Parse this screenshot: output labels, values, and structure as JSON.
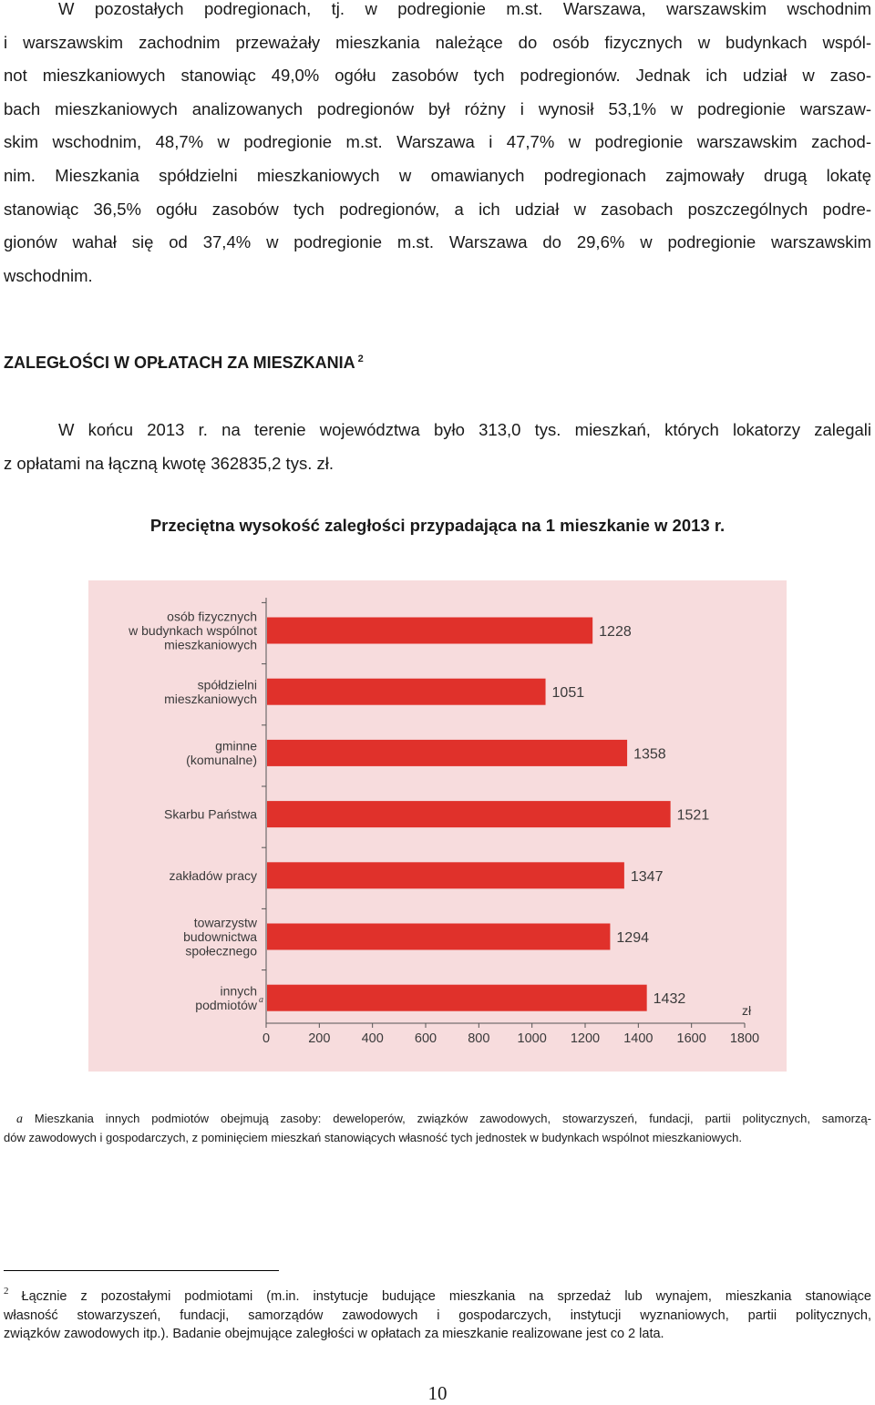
{
  "paragraph_1": {
    "lines": [
      "W pozostałych podregionach, tj. w podregionie m.st. Warszawa, warszawskim wschodnim",
      "i warszawskim zachodnim przeważały mieszkania należące do osób fizycznych w budynkach wspól-",
      "not mieszkaniowych stanowiąc 49,0% ogółu zasobów tych podregionów. Jednak ich udział w zaso-",
      "bach mieszkaniowych analizowanych podregionów był różny i wynosił 53,1% w podregionie warszaw-",
      "skim wschodnim, 48,7% w podregionie m.st. Warszawa i 47,7% w podregionie warszawskim zachod-",
      "nim. Mieszkania spółdzielni mieszkaniowych w omawianych podregionach zajmowały drugą lokatę",
      "stanowiąc 36,5% ogółu zasobów tych podregionów, a ich udział w zasobach poszczególnych podre-",
      "gionów wahał się od 37,4% w podregionie m.st. Warszawa do 29,6% w podregionie warszawskim",
      "wschodnim."
    ]
  },
  "section_heading": {
    "text": "ZALEGŁOŚCI W OPŁATACH ZA MIESZKANIA",
    "footnote_ref": "2"
  },
  "paragraph_2": {
    "lines": [
      "W końcu 2013 r. na terenie województwa było 313,0 tys. mieszkań, których lokatorzy zalegali",
      "z opłatami na łączną kwotę 362835,2 tys. zł."
    ]
  },
  "chart_title": "Przeciętna wysokość zaległości przypadająca na 1 mieszkanie w 2013 r.",
  "chart_data": {
    "type": "bar",
    "orientation": "horizontal",
    "categories": [
      [
        "osób fizycznych",
        "w budynkach wspólnot",
        "mieszkaniowych"
      ],
      [
        "spółdzielni",
        "mieszkaniowych"
      ],
      [
        "gminne",
        "(komunalne)"
      ],
      [
        "Skarbu Państwa"
      ],
      [
        "zakładów pracy"
      ],
      [
        "towarzystw",
        "budownictwa",
        "społecznego"
      ],
      [
        "innych",
        "podmiotów"
      ]
    ],
    "category_marks": [
      "",
      "",
      "",
      "",
      "",
      "",
      "a"
    ],
    "values": [
      1228,
      1051,
      1358,
      1521,
      1347,
      1294,
      1432
    ],
    "value_labels": [
      "1228",
      "1051",
      "1358",
      "1521",
      "1347",
      "1294",
      "1432"
    ],
    "xlim": [
      0,
      1800
    ],
    "xticks": [
      "0",
      "200",
      "400",
      "600",
      "800",
      "1000",
      "1200",
      "1400",
      "1600",
      "1800"
    ],
    "xunit": "zł",
    "grid": false,
    "colors": {
      "bar": "#e0312b",
      "background": "#f7dcdd",
      "text": "#3a3a3a"
    }
  },
  "footnote_a": {
    "mark": "a",
    "lines": [
      "Mieszkania innych podmiotów obejmują zasoby: deweloperów, związków zawodowych, stowarzyszeń, fundacji, partii politycznych, samorzą-",
      "dów zawodowych i gospodarczych, z pominięciem mieszkań stanowiących własność tych jednostek w budynkach wspólnot mieszkaniowych."
    ]
  },
  "footnote_2": {
    "number": "2",
    "lines": [
      "Łącznie z pozostałymi podmiotami (m.in. instytucje budujące mieszkania na sprzedaż lub wynajem, mieszkania stanowiące",
      "własność stowarzyszeń, fundacji, samorządów zawodowych i gospodarczych, instytucji wyznaniowych, partii politycznych,",
      "związków zawodowych itp.). Badanie obejmujące zaległości w opłatach za mieszkanie realizowane jest co 2 lata."
    ]
  },
  "page_number": "10"
}
